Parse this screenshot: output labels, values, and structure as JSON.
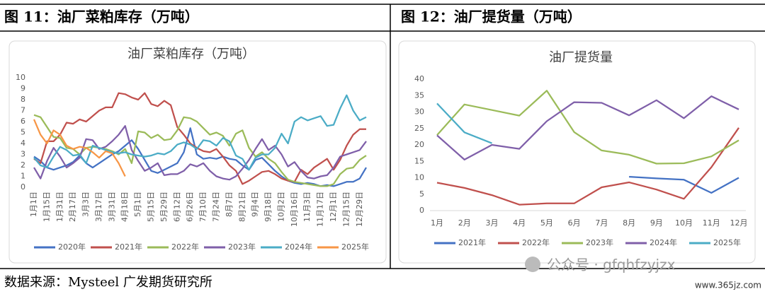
{
  "header": {
    "left": "图 11：油厂菜粕库存（万吨）",
    "right": "图 12：油厂提货量（万吨）"
  },
  "source": "数据来源：Mysteel 广发期货研究所",
  "watermark": [
    "公众号 · gfqhfzyjzx",
    "www.365jz.com"
  ],
  "chart_data": [
    {
      "type": "line",
      "title": "油厂菜粕库存（万吨）",
      "categories": [
        "1月1日",
        null,
        "1月15日",
        null,
        "1月31日",
        null,
        "2月17日",
        null,
        "3月3日",
        null,
        "3月17日",
        null,
        "3月31日",
        null,
        "4月18日",
        null,
        "5月1日",
        null,
        "5月15日",
        null,
        "5月29日",
        null,
        "6月12日",
        null,
        "6月26日",
        null,
        "7月10日",
        null,
        "7月24日",
        null,
        "8月7日",
        null,
        "8月21日",
        null,
        "9月4日",
        null,
        "9月18日",
        null,
        "10月2日",
        null,
        "10月16日",
        null,
        "11月3日",
        null,
        "11月17日",
        null,
        "12月1日",
        null,
        "12月15日",
        null,
        "12月29日",
        null
      ],
      "ylim": [
        0,
        10
      ],
      "yticks": [
        0,
        1,
        2,
        3,
        4,
        5,
        6,
        7,
        8,
        9,
        10
      ],
      "grid": false,
      "legend": "bottom",
      "series": [
        {
          "name": "2020年",
          "color": "#4472c4",
          "values": [
            2.8,
            2.4,
            1.8,
            1.6,
            1.8,
            2.0,
            2.3,
            2.9,
            2.2,
            1.8,
            2.2,
            2.6,
            3.0,
            3.3,
            3.8,
            4.3,
            3.5,
            2.5,
            1.5,
            1.3,
            1.6,
            1.9,
            2.2,
            3.2,
            5.4,
            3.0,
            2.6,
            2.7,
            2.6,
            2.8,
            2.6,
            2.5,
            2.0,
            1.6,
            2.5,
            2.7,
            2.1,
            1.5,
            1.0,
            0.6,
            0.4,
            0.3,
            0.4,
            0.3,
            0.1,
            0.2,
            0.1,
            0.3,
            0.5,
            0.5,
            0.8,
            1.8
          ]
        },
        {
          "name": "2021年",
          "color": "#c0504d",
          "values": [
            2.6,
            2.2,
            4.2,
            4.2,
            4.8,
            5.9,
            5.8,
            6.2,
            6.0,
            6.5,
            7.0,
            7.3,
            7.3,
            8.6,
            8.5,
            8.2,
            8.0,
            8.6,
            7.6,
            7.4,
            7.9,
            7.5,
            5.5,
            4.8,
            4.0,
            3.6,
            3.3,
            3.2,
            3.5,
            2.8,
            2.0,
            1.5,
            0.3,
            0.6,
            1.0,
            1.4,
            1.5,
            1.2,
            0.8,
            0.6,
            0.5,
            1.6,
            1.2,
            1.8,
            2.2,
            2.6,
            1.6,
            2.5,
            3.8,
            4.8,
            5.3,
            5.3
          ]
        },
        {
          "name": "2022年",
          "color": "#9bbb59",
          "values": [
            6.6,
            6.4,
            5.5,
            4.6,
            4.5,
            3.6,
            3.5,
            3.0,
            3.6,
            3.7,
            3.6,
            3.5,
            3.3,
            3.0,
            3.5,
            2.2,
            5.1,
            5.0,
            4.5,
            4.8,
            4.3,
            4.4,
            5.2,
            6.4,
            6.3,
            6.0,
            5.4,
            4.8,
            5.0,
            4.7,
            3.8,
            4.9,
            5.2,
            3.6,
            2.8,
            3.2,
            2.6,
            2.2,
            1.4,
            0.7,
            0.5,
            0.4,
            0.3,
            0.2,
            0.1,
            0.1,
            0.3,
            1.2,
            1.7,
            1.8,
            2.5,
            2.9
          ]
        },
        {
          "name": "2023年",
          "color": "#7f5fa9",
          "values": [
            1.8,
            0.8,
            2.4,
            3.6,
            2.8,
            1.8,
            2.2,
            2.7,
            4.4,
            4.3,
            3.5,
            3.7,
            4.2,
            4.8,
            5.6,
            3.4,
            2.4,
            1.5,
            1.8,
            2.2,
            1.1,
            1.2,
            1.2,
            1.5,
            2.1,
            1.9,
            2.2,
            1.5,
            1.0,
            0.8,
            0.7,
            1.0,
            1.7,
            2.5,
            3.5,
            4.4,
            3.4,
            3.8,
            3.0,
            1.9,
            2.3,
            1.5,
            0.9,
            0.8,
            1.0,
            1.1,
            1.8,
            2.8,
            3.0,
            3.2,
            3.4,
            4.2
          ]
        },
        {
          "name": "2024年",
          "color": "#4bacc6",
          "values": [
            2.7,
            2.0,
            1.8,
            2.8,
            3.7,
            3.4,
            2.9,
            3.0,
            2.2,
            3.8,
            3.6,
            3.4,
            3.2,
            3.1,
            3.2,
            3.0,
            2.9,
            2.8,
            2.9,
            3.1,
            3.0,
            3.3,
            3.9,
            4.1,
            3.9,
            3.5,
            4.3,
            4.2,
            3.8,
            4.5,
            4.2,
            2.9,
            2.6,
            1.6,
            2.7,
            3.0,
            3.0,
            3.6,
            4.9,
            4.0,
            6.0,
            6.4,
            6.1,
            6.3,
            6.5,
            5.6,
            5.7,
            7.2,
            8.4,
            7.0,
            6.1,
            6.4
          ]
        },
        {
          "name": "2025年",
          "color": "#f79646",
          "values": [
            6.2,
            4.8,
            4.0,
            5.2,
            4.8,
            3.8,
            3.5,
            3.7,
            3.6,
            3.2,
            2.7,
            3.3,
            3.1,
            2.2,
            1.0,
            null,
            null,
            null,
            null,
            null,
            null,
            null,
            null,
            null,
            null,
            null,
            null,
            null,
            null,
            null,
            null,
            null,
            null,
            null,
            null,
            null,
            null,
            null,
            null,
            null,
            null,
            null,
            null,
            null,
            null,
            null,
            null,
            null,
            null,
            null,
            null,
            null
          ]
        }
      ]
    },
    {
      "type": "line",
      "title": "油厂提货量",
      "categories": [
        "1月",
        "2月",
        "3月",
        "4月",
        "5月",
        "6月",
        "7月",
        "8月",
        "9月",
        "10月",
        "11月",
        "12月"
      ],
      "ylim": [
        0,
        40
      ],
      "yticks": [
        0,
        5,
        10,
        15,
        20,
        25,
        30,
        35,
        40
      ],
      "grid": false,
      "legend": "bottom",
      "series": [
        {
          "name": "2021年",
          "color": "#4472c4",
          "values": [
            null,
            null,
            null,
            null,
            null,
            null,
            null,
            10.3,
            9.8,
            9.4,
            5.4,
            10.0
          ]
        },
        {
          "name": "2022年",
          "color": "#c0504d",
          "values": [
            8.5,
            6.9,
            4.7,
            1.8,
            2.2,
            2.2,
            7.1,
            8.6,
            6.4,
            3.6,
            13.2,
            25.2
          ]
        },
        {
          "name": "2023年",
          "color": "#9bbb59",
          "values": [
            23.0,
            32.3,
            30.6,
            28.9,
            36.5,
            23.9,
            18.3,
            17.0,
            14.3,
            14.4,
            16.5,
            21.4
          ]
        },
        {
          "name": "2024年",
          "color": "#7f5fa9",
          "values": [
            22.9,
            15.5,
            20.0,
            18.8,
            27.2,
            33.0,
            32.8,
            29.0,
            33.6,
            28.1,
            34.8,
            30.8
          ]
        },
        {
          "name": "2025年",
          "color": "#4bacc6",
          "values": [
            32.6,
            23.8,
            20.5,
            null,
            null,
            null,
            null,
            null,
            null,
            null,
            null,
            null
          ]
        }
      ]
    }
  ]
}
